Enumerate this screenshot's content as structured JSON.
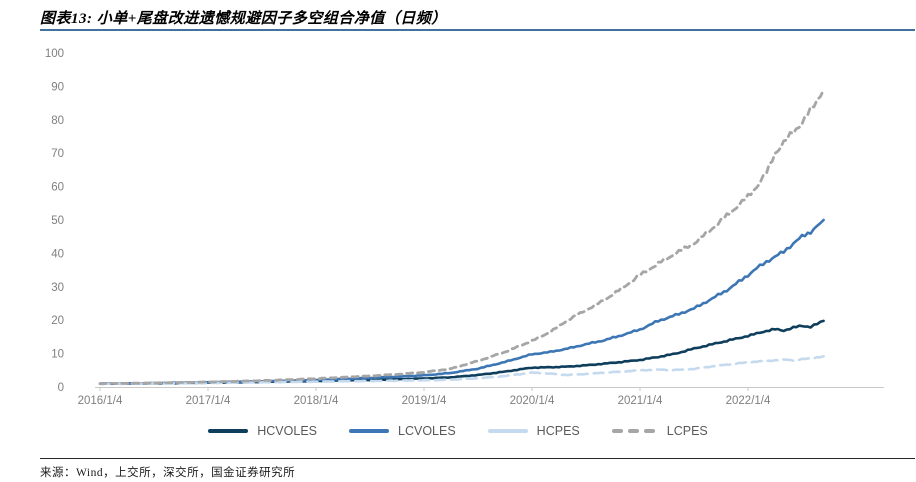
{
  "header": {
    "title": "图表13: 小单+尾盘改进遗憾规避因子多空组合净值（日频）",
    "underline_color": "#41719c"
  },
  "footer": {
    "source": "来源：Wind，上交所，深交所，国金证券研究所"
  },
  "chart_data": {
    "type": "line",
    "title": "小单+尾盘改进遗憾规避因子多空组合净值（日频）",
    "xlabel": "",
    "ylabel": "",
    "ylim": [
      0,
      100
    ],
    "y_ticks": [
      0,
      10,
      20,
      30,
      40,
      50,
      60,
      70,
      80,
      90,
      100
    ],
    "x_tick_labels": [
      "2016/1/4",
      "2017/1/4",
      "2018/1/4",
      "2019/1/4",
      "2020/1/4",
      "2021/1/4",
      "2022/1/4"
    ],
    "x_tick_positions": [
      0,
      1,
      2,
      3,
      4,
      5,
      6
    ],
    "x_unit": "years since 2016/1/4",
    "grid": false,
    "legend_position": "bottom",
    "axis_color": "#c9c9c9",
    "tick_label_color": "#7f7f7f",
    "x": [
      0,
      0.25,
      0.5,
      0.75,
      1,
      1.25,
      1.5,
      1.75,
      2,
      2.25,
      2.5,
      2.75,
      3,
      3.25,
      3.5,
      3.75,
      4,
      4.17,
      4.33,
      4.5,
      4.67,
      4.83,
      5,
      5.17,
      5.33,
      5.5,
      5.67,
      5.83,
      6,
      6.08,
      6.17,
      6.25,
      6.33,
      6.42,
      6.5,
      6.58,
      6.67,
      6.7
    ],
    "series": [
      {
        "name": "HCVOLES",
        "color": "#0f3e5c",
        "style": "solid",
        "values": [
          1,
          1.05,
          1.1,
          1.2,
          1.3,
          1.4,
          1.5,
          1.65,
          1.8,
          1.95,
          2.1,
          2.3,
          2.55,
          2.9,
          3.6,
          4.6,
          5.8,
          5.9,
          6.1,
          6.5,
          7,
          7.5,
          8.1,
          9,
          10,
          11.5,
          12.8,
          14,
          15.3,
          16,
          16.8,
          17.3,
          16.9,
          17.8,
          18.3,
          18,
          19.3,
          19.8
        ]
      },
      {
        "name": "LCVOLES",
        "color": "#3d76b4",
        "style": "solid",
        "values": [
          1,
          1.05,
          1.15,
          1.3,
          1.4,
          1.55,
          1.7,
          1.9,
          2.1,
          2.4,
          2.7,
          3.1,
          3.5,
          4.2,
          5.5,
          7.5,
          9.8,
          10.5,
          11.5,
          12.8,
          14,
          15.5,
          17.2,
          19.8,
          21.5,
          23.5,
          26.5,
          29.5,
          33.5,
          35.5,
          37.5,
          39,
          40.5,
          43,
          45,
          46.5,
          49,
          50
        ]
      },
      {
        "name": "HCPES",
        "color": "#c5daef",
        "style": "dashed",
        "values": [
          1,
          1,
          1.05,
          1.1,
          1.2,
          1.3,
          1.4,
          1.5,
          1.6,
          1.7,
          1.8,
          1.9,
          2,
          2.2,
          2.6,
          3.3,
          4.3,
          4,
          3.6,
          3.9,
          4.3,
          4.6,
          5,
          5.2,
          5.1,
          5.4,
          6.2,
          6.8,
          7.4,
          7.6,
          7.8,
          8,
          8.2,
          8,
          8.3,
          8.6,
          9,
          9.2
        ]
      },
      {
        "name": "LCPES",
        "color": "#a6a6a6",
        "style": "dashed",
        "values": [
          1,
          1.1,
          1.2,
          1.35,
          1.5,
          1.7,
          1.9,
          2.2,
          2.5,
          2.9,
          3.3,
          3.8,
          4.4,
          5.5,
          7.8,
          10.5,
          13.8,
          16.5,
          20,
          23,
          26,
          29.5,
          33.5,
          37,
          40,
          43,
          47.5,
          52,
          57,
          60,
          64,
          70,
          73,
          76.5,
          79,
          83,
          87.5,
          89
        ]
      }
    ]
  }
}
